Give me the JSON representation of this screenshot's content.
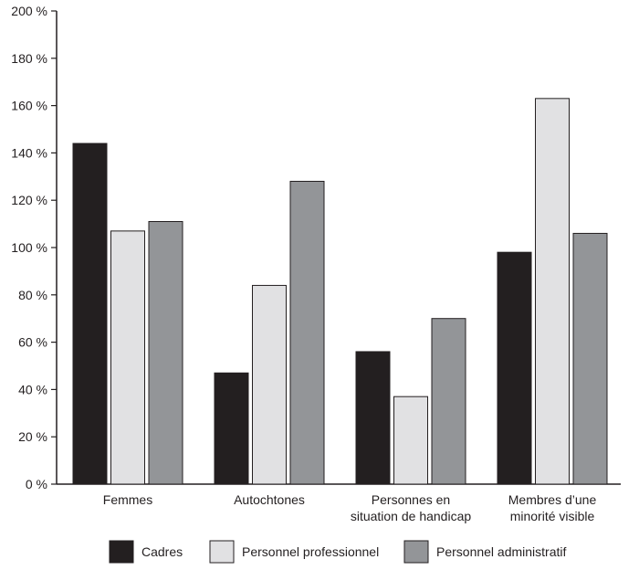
{
  "chart_data": {
    "type": "bar",
    "title": "",
    "xlabel": "",
    "ylabel": "",
    "ylim": [
      0,
      200
    ],
    "yticks": [
      0,
      20,
      40,
      60,
      80,
      100,
      120,
      140,
      160,
      180,
      200
    ],
    "tick_suffix": " %",
    "grid": false,
    "legend_position": "bottom",
    "categories": [
      [
        "Femmes"
      ],
      [
        "Autochtones"
      ],
      [
        "Personnes en",
        "situation de handicap"
      ],
      [
        "Membres d’une",
        "minorité visible"
      ]
    ],
    "series": [
      {
        "name": "Cadres",
        "color": "#231f20",
        "values": [
          144,
          47,
          56,
          98
        ]
      },
      {
        "name": "Personnel professionnel",
        "color": "#e1e1e3",
        "values": [
          107,
          84,
          37,
          163
        ]
      },
      {
        "name": "Personnel administratif",
        "color": "#939598",
        "values": [
          111,
          128,
          70,
          106
        ]
      }
    ]
  }
}
